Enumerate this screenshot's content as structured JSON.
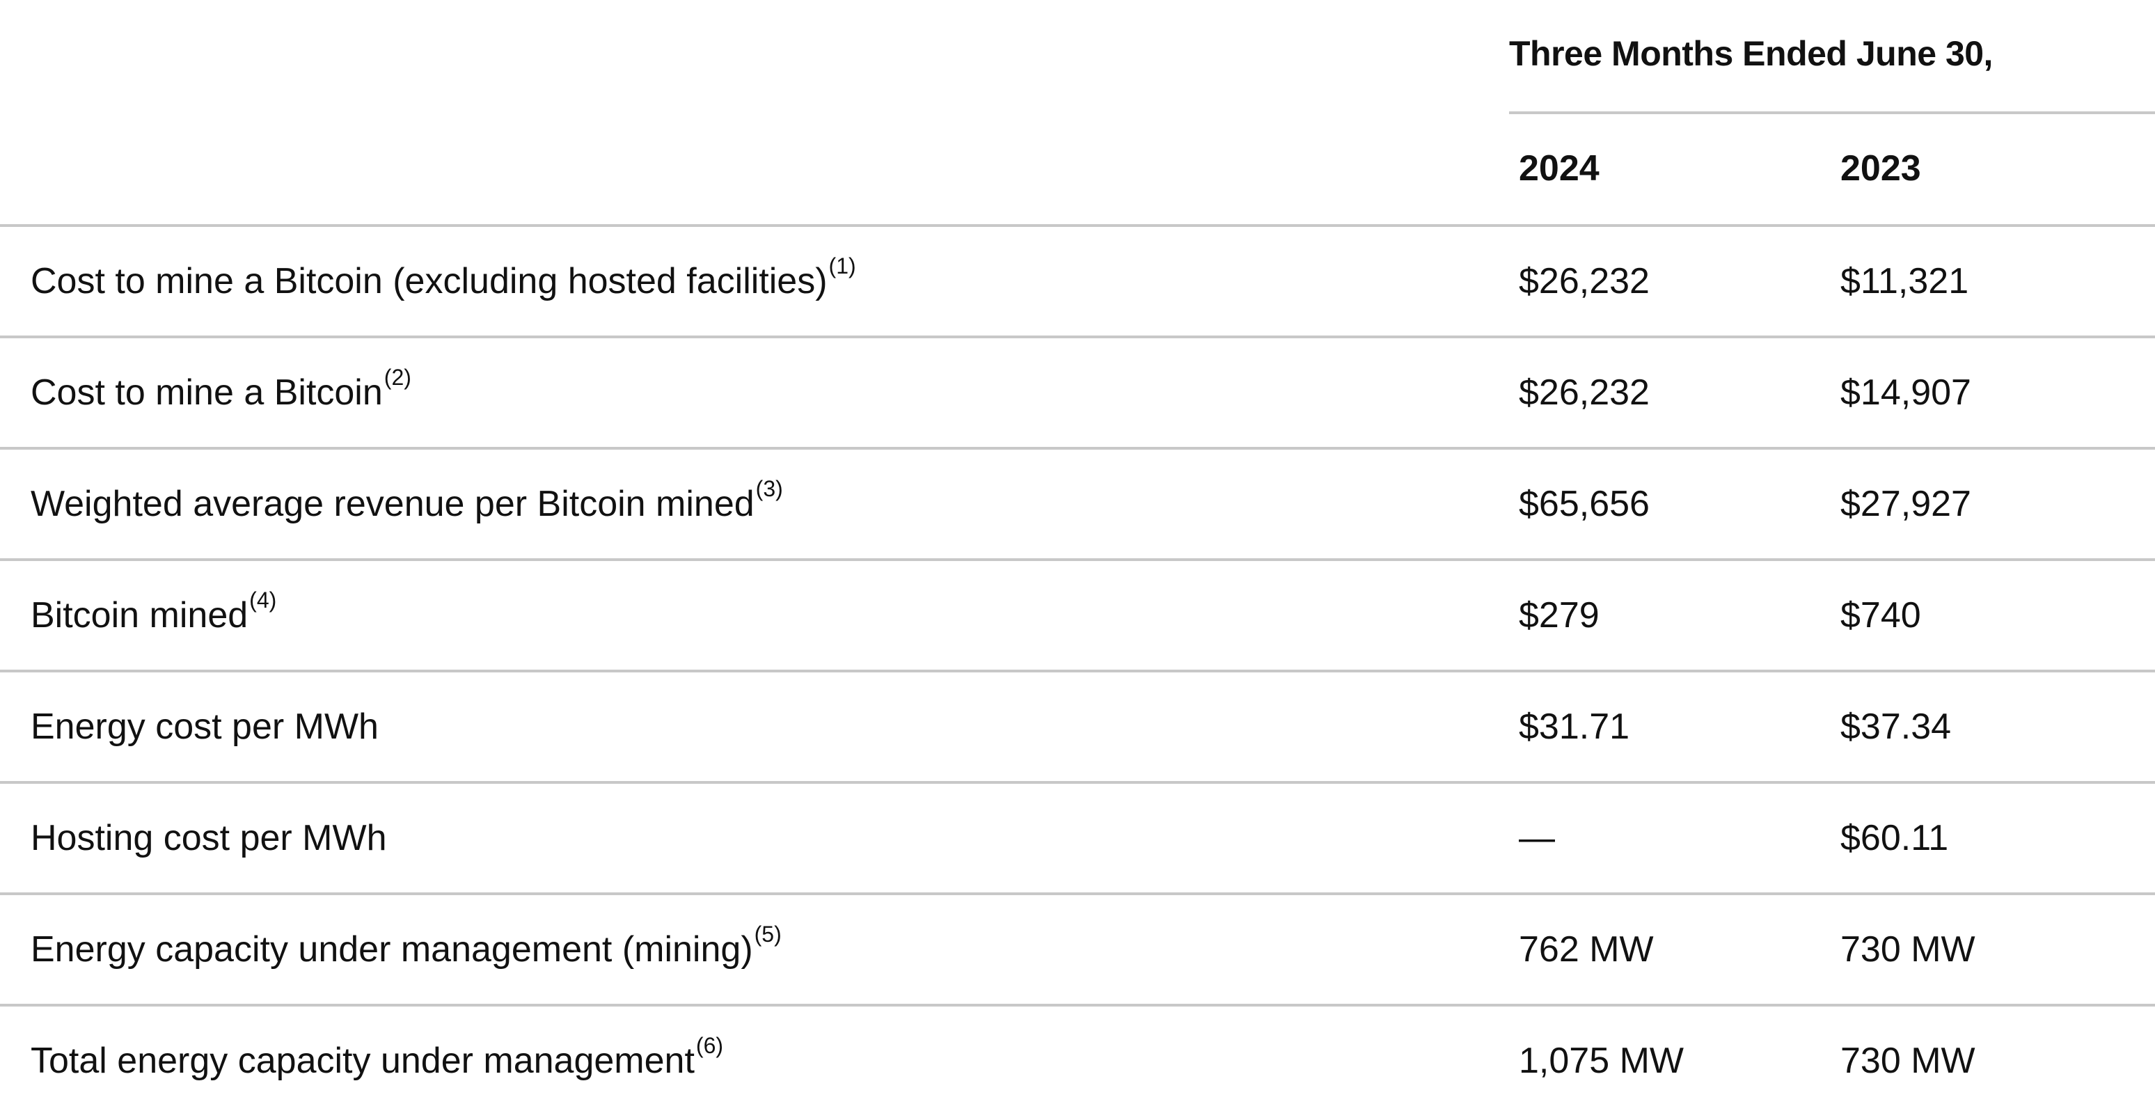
{
  "header": {
    "period": "Three Months Ended June 30,",
    "years": [
      "2024",
      "2023"
    ]
  },
  "rows": [
    {
      "label": "Cost to mine a Bitcoin (excluding hosted facilities)",
      "note": "(1)",
      "v2024": "$26,232",
      "v2023": "$11,321"
    },
    {
      "label": "Cost to mine a Bitcoin",
      "note": "(2)",
      "v2024": "$26,232",
      "v2023": "$14,907"
    },
    {
      "label": "Weighted average revenue per Bitcoin mined",
      "note": "(3)",
      "v2024": "$65,656",
      "v2023": "$27,927"
    },
    {
      "label": "Bitcoin mined",
      "note": "(4)",
      "v2024": "$279",
      "v2023": "$740"
    },
    {
      "label": "Energy cost per MWh",
      "note": "",
      "v2024": "$31.71",
      "v2023": "$37.34"
    },
    {
      "label": "Hosting cost per MWh",
      "note": "",
      "v2024": "—",
      "v2023": "$60.11"
    },
    {
      "label": "Energy capacity under management (mining)",
      "note": "(5)",
      "v2024": "762 MW",
      "v2023": "730 MW"
    },
    {
      "label": "Total energy capacity under management",
      "note": "(6)",
      "v2024": "1,075 MW",
      "v2023": "730 MW"
    }
  ]
}
